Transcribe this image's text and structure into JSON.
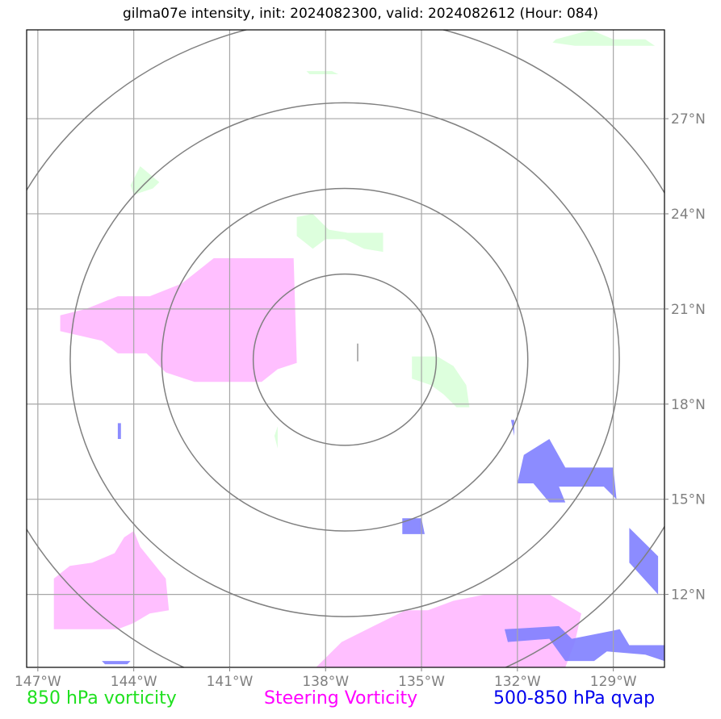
{
  "title": "gilma07e intensity, init: 2024082300, valid: 2024082612 (Hour: 084)",
  "legend": {
    "items": [
      {
        "label": "850 hPa vorticity",
        "color": "#00ff00"
      },
      {
        "label": "Steering Vorticity",
        "color": "#ff00ff"
      },
      {
        "label": "500-850 hPa qvap",
        "color": "#0000ff"
      }
    ]
  },
  "chart_data": {
    "type": "map",
    "projection": "lat-lon",
    "lon_range": [
      -147.35,
      -127.4
    ],
    "lat_range": [
      9.7,
      29.8
    ],
    "lon_ticks": [
      {
        "value": -147,
        "label": "147°W"
      },
      {
        "value": -144,
        "label": "144°W"
      },
      {
        "value": -141,
        "label": "141°W"
      },
      {
        "value": -138,
        "label": "138°W"
      },
      {
        "value": -135,
        "label": "135°W"
      },
      {
        "value": -132,
        "label": "132°W"
      },
      {
        "value": -129,
        "label": "129°W"
      }
    ],
    "lat_ticks": [
      {
        "value": 12,
        "label": "12°N"
      },
      {
        "value": 15,
        "label": "15°N"
      },
      {
        "value": 18,
        "label": "18°N"
      },
      {
        "value": 21,
        "label": "21°N"
      },
      {
        "value": 24,
        "label": "24°N"
      },
      {
        "value": 27,
        "label": "27°N"
      }
    ],
    "grid": true,
    "storm_center": {
      "lon": -137.4,
      "lat": 19.4
    },
    "range_rings_deg_lat": [
      2.7,
      5.4,
      8.1,
      10.8
    ],
    "fields": [
      {
        "name": "850 hPa vorticity",
        "color": "#ddffdd",
        "polygons": [
          [
            [
              -135.3,
              19.5
            ],
            [
              -134.5,
              19.5
            ],
            [
              -134.0,
              19.2
            ],
            [
              -133.6,
              18.6
            ],
            [
              -133.5,
              17.9
            ],
            [
              -133.9,
              17.9
            ],
            [
              -134.3,
              18.3
            ],
            [
              -134.7,
              18.6
            ],
            [
              -135.3,
              18.8
            ]
          ],
          [
            [
              -138.9,
              23.9
            ],
            [
              -138.4,
              24.0
            ],
            [
              -137.9,
              23.5
            ],
            [
              -137.3,
              23.4
            ],
            [
              -136.2,
              23.4
            ],
            [
              -136.2,
              22.8
            ],
            [
              -136.8,
              22.9
            ],
            [
              -137.4,
              23.2
            ],
            [
              -138.0,
              23.2
            ],
            [
              -138.4,
              22.9
            ],
            [
              -138.9,
              23.3
            ]
          ],
          [
            [
              -144.1,
              24.9
            ],
            [
              -143.8,
              25.5
            ],
            [
              -143.2,
              25.0
            ],
            [
              -143.4,
              24.8
            ],
            [
              -144.0,
              24.6
            ]
          ],
          [
            [
              -130.8,
              29.5
            ],
            [
              -129.7,
              29.8
            ],
            [
              -129.0,
              29.5
            ],
            [
              -128.0,
              29.5
            ],
            [
              -127.7,
              29.3
            ],
            [
              -130.2,
              29.3
            ],
            [
              -130.9,
              29.4
            ]
          ],
          [
            [
              -138.6,
              28.5
            ],
            [
              -137.8,
              28.5
            ],
            [
              -137.6,
              28.4
            ],
            [
              -138.5,
              28.4
            ]
          ],
          [
            [
              -139.6,
              17.0
            ],
            [
              -139.5,
              16.6
            ],
            [
              -139.5,
              17.3
            ]
          ]
        ]
      },
      {
        "name": "Steering Vorticity",
        "color": "#ffbfff",
        "polygons": [
          [
            [
              -146.3,
              20.8
            ],
            [
              -145.5,
              21.0
            ],
            [
              -144.5,
              21.4
            ],
            [
              -143.5,
              21.4
            ],
            [
              -142.5,
              21.8
            ],
            [
              -141.5,
              22.6
            ],
            [
              -139.0,
              22.6
            ],
            [
              -138.9,
              19.3
            ],
            [
              -139.5,
              19.1
            ],
            [
              -140.0,
              18.7
            ],
            [
              -142.1,
              18.7
            ],
            [
              -143.0,
              19.0
            ],
            [
              -143.6,
              19.6
            ],
            [
              -144.5,
              19.6
            ],
            [
              -145.0,
              20.0
            ],
            [
              -146.3,
              20.3
            ]
          ],
          [
            [
              -146.5,
              12.5
            ],
            [
              -146.0,
              12.9
            ],
            [
              -145.3,
              13.0
            ],
            [
              -144.6,
              13.3
            ],
            [
              -144.3,
              13.8
            ],
            [
              -144.0,
              14.0
            ],
            [
              -143.8,
              13.5
            ],
            [
              -143.4,
              13.0
            ],
            [
              -143.0,
              12.5
            ],
            [
              -142.9,
              11.5
            ],
            [
              -143.5,
              11.4
            ],
            [
              -144.0,
              11.1
            ],
            [
              -144.5,
              10.9
            ],
            [
              -146.5,
              10.9
            ]
          ],
          [
            [
              -138.3,
              9.7
            ],
            [
              -137.5,
              10.5
            ],
            [
              -136.5,
              11.0
            ],
            [
              -135.5,
              11.5
            ],
            [
              -134.8,
              11.5
            ],
            [
              -134.0,
              11.8
            ],
            [
              -133.0,
              12.0
            ],
            [
              -131.0,
              12.0
            ],
            [
              -130.0,
              11.4
            ],
            [
              -130.2,
              10.5
            ],
            [
              -130.5,
              9.7
            ]
          ]
        ]
      },
      {
        "name": "500-850 hPa qvap",
        "color": "#8080ff",
        "polygons": [
          [
            [
              -131.0,
              16.9
            ],
            [
              -130.5,
              16.0
            ],
            [
              -130.0,
              16.0
            ],
            [
              -129.0,
              16.0
            ],
            [
              -128.9,
              15.0
            ],
            [
              -129.3,
              15.4
            ],
            [
              -130.7,
              15.4
            ],
            [
              -130.5,
              14.9
            ],
            [
              -131.0,
              14.9
            ],
            [
              -131.5,
              15.5
            ],
            [
              -132.0,
              15.5
            ],
            [
              -131.8,
              16.4
            ]
          ],
          [
            [
              -135.6,
              14.4
            ],
            [
              -135.0,
              14.4
            ],
            [
              -134.9,
              13.9
            ],
            [
              -135.6,
              13.9
            ]
          ],
          [
            [
              -132.4,
              10.9
            ],
            [
              -130.7,
              11.0
            ],
            [
              -130.3,
              10.6
            ],
            [
              -128.8,
              10.9
            ],
            [
              -128.5,
              10.4
            ],
            [
              -127.4,
              10.4
            ],
            [
              -127.4,
              9.9
            ],
            [
              -128.0,
              10.1
            ],
            [
              -129.2,
              10.2
            ],
            [
              -129.6,
              9.9
            ],
            [
              -130.5,
              9.9
            ],
            [
              -131.0,
              10.6
            ],
            [
              -132.3,
              10.5
            ]
          ],
          [
            [
              -128.5,
              14.1
            ],
            [
              -127.6,
              13.2
            ],
            [
              -127.6,
              12.0
            ],
            [
              -128.5,
              13.0
            ],
            [
              -128.5,
              13.6
            ]
          ],
          [
            [
              -144.5,
              17.4
            ],
            [
              -144.4,
              17.4
            ],
            [
              -144.4,
              16.9
            ],
            [
              -144.5,
              16.9
            ]
          ],
          [
            [
              -132.2,
              17.5
            ],
            [
              -132.1,
              17.5
            ],
            [
              -132.1,
              17.0
            ]
          ],
          [
            [
              -145.0,
              9.9
            ],
            [
              -144.1,
              9.9
            ],
            [
              -144.2,
              9.8
            ],
            [
              -144.9,
              9.8
            ]
          ]
        ]
      }
    ]
  }
}
